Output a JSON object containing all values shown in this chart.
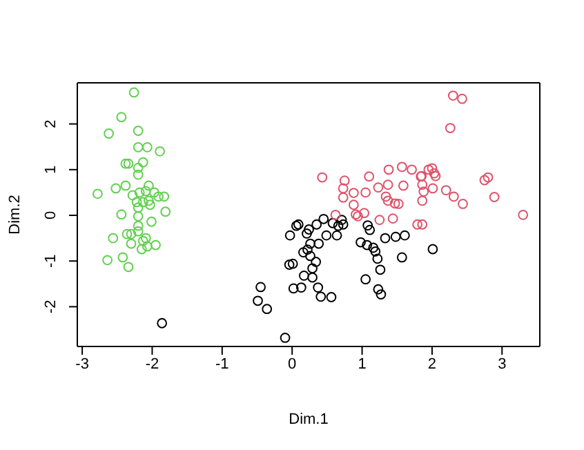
{
  "chart_data": {
    "type": "scatter",
    "xlabel": "Dim.1",
    "ylabel": "Dim.2",
    "xlim": [
      -3.07,
      3.54
    ],
    "ylim": [
      -2.87,
      2.9
    ],
    "xticks": [
      -3,
      -2,
      -1,
      0,
      1,
      2,
      3
    ],
    "yticks": [
      -2,
      -1,
      0,
      1,
      2
    ],
    "marker": "circle",
    "series": [
      {
        "color": "#61d04f",
        "x": [
          -2.26,
          -2.44,
          -2.62,
          -2.2,
          -2.2,
          -2.07,
          -1.89,
          -2.38,
          -2.34,
          -2.13,
          -2.2,
          -2.2,
          -2.78,
          -2.52,
          -2.38,
          -2.05,
          -2.28,
          -2.18,
          -2.09,
          -1.97,
          -1.91,
          -1.83,
          -2.22,
          -2.13,
          -2.05,
          -2.03,
          -2.44,
          -2.2,
          -2.2,
          -1.81,
          -2.2,
          -2.36,
          -2.3,
          -2.2,
          -2.56,
          -2.13,
          -2.09,
          -2.3,
          -2.15,
          -2.07,
          -1.95,
          -2.42,
          -2.64,
          -2.34,
          -2.01
        ],
        "values": [
          2.69,
          2.15,
          1.79,
          1.85,
          1.49,
          1.49,
          1.4,
          1.13,
          1.13,
          1.16,
          1.04,
          0.89,
          0.47,
          0.59,
          0.65,
          0.65,
          0.44,
          0.5,
          0.53,
          0.5,
          0.41,
          0.41,
          0.29,
          0.29,
          0.32,
          0.23,
          0.02,
          0.17,
          -0.02,
          0.08,
          -0.23,
          -0.41,
          -0.41,
          -0.35,
          -0.5,
          -0.56,
          -0.5,
          -0.62,
          -0.74,
          -0.68,
          -0.65,
          -0.92,
          -0.98,
          -1.13,
          -0.14
        ]
      },
      {
        "color": "#000000",
        "x": [
          -0.1,
          -0.45,
          -0.49,
          -0.36,
          0.02,
          0.13,
          0.37,
          0.41,
          0.56,
          0.17,
          0.29,
          -0.04,
          0.01,
          0.34,
          0.29,
          0.16,
          0.26,
          0.22,
          0.26,
          0.38,
          -0.03,
          0.21,
          0.24,
          0.06,
          0.09,
          0.35,
          0.45,
          0.49,
          0.58,
          0.64,
          0.66,
          0.71,
          0.73,
          1.08,
          1.11,
          0.98,
          1.07,
          1.16,
          1.19,
          1.22,
          1.26,
          1.05,
          1.23,
          1.27,
          1.33,
          1.48,
          1.61,
          1.57,
          2.01,
          -1.86
        ],
        "values": [
          -2.68,
          -1.57,
          -1.87,
          -2.05,
          -1.6,
          -1.58,
          -1.58,
          -1.78,
          -1.79,
          -1.32,
          -1.36,
          -1.08,
          -1.06,
          -1.02,
          -1.16,
          -0.81,
          -0.89,
          -0.75,
          -0.62,
          -0.62,
          -0.44,
          -0.4,
          -0.31,
          -0.23,
          -0.2,
          -0.2,
          -0.08,
          -0.44,
          -0.17,
          -0.44,
          -0.23,
          -0.1,
          -0.2,
          -0.22,
          -0.32,
          -0.59,
          -0.65,
          -0.71,
          -0.79,
          -0.95,
          -1.19,
          -1.4,
          -1.62,
          -1.73,
          -0.5,
          -0.47,
          -0.44,
          -0.92,
          -0.74,
          -2.36
        ]
      },
      {
        "color": "#df536b",
        "x": [
          0.43,
          0.75,
          0.73,
          0.73,
          0.88,
          0.88,
          0.91,
          0.94,
          1.03,
          0.62,
          1.05,
          1.1,
          1.25,
          1.23,
          1.34,
          1.37,
          1.38,
          1.37,
          1.44,
          1.47,
          1.52,
          1.59,
          1.57,
          1.71,
          1.85,
          1.86,
          1.88,
          1.86,
          2.3,
          2.43,
          2.26,
          1.95,
          2.0,
          2.05,
          2.03,
          1.84,
          2.01,
          2.2,
          2.31,
          2.44,
          2.75,
          2.8,
          2.89,
          3.3,
          1.79,
          1.86
        ],
        "values": [
          0.83,
          0.76,
          0.59,
          0.39,
          0.49,
          0.23,
          0.02,
          -0.02,
          0.05,
          0.01,
          0.5,
          0.85,
          -0.1,
          0.61,
          0.41,
          0.32,
          1.0,
          0.67,
          -0.07,
          0.26,
          0.25,
          0.65,
          1.06,
          1.0,
          0.86,
          0.67,
          0.52,
          0.32,
          2.62,
          2.55,
          1.91,
          1.0,
          1.03,
          0.86,
          0.92,
          0.85,
          0.59,
          0.55,
          0.41,
          0.25,
          0.77,
          0.83,
          0.4,
          0.01,
          -0.2,
          -0.2
        ]
      }
    ]
  }
}
